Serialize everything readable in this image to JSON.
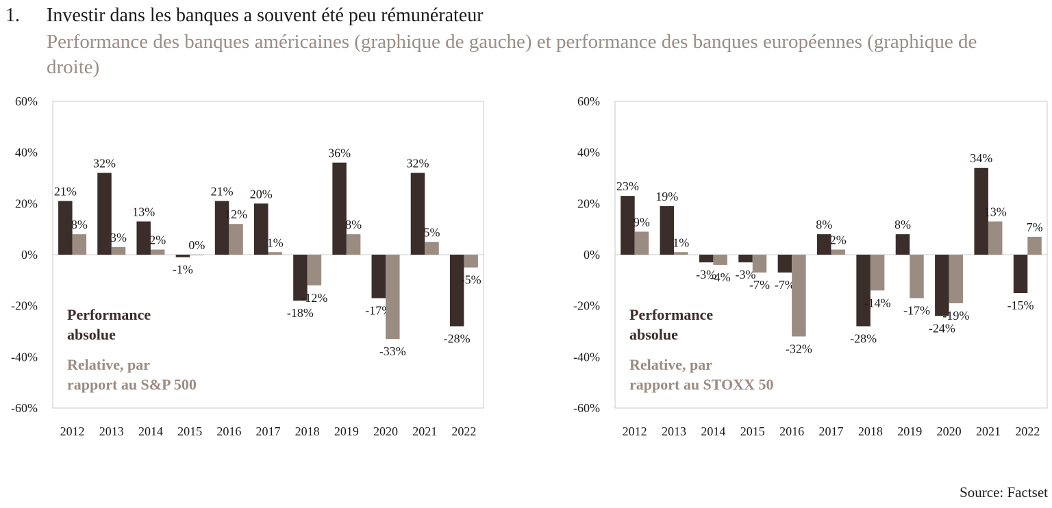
{
  "header": {
    "number": "1.",
    "title": "Investir dans les banques a souvent été peu rémunérateur",
    "subtitle": "Performance des banques américaines (graphique de gauche) et performance des banques européennes (graphique de droite)"
  },
  "footer": {
    "source": "Source: Factset"
  },
  "colors": {
    "absolute": "#3b2d29",
    "relative": "#9b8c82",
    "axis": "#c8c8c8",
    "text": "#1a1a1a"
  },
  "chart_data": [
    {
      "type": "bar",
      "title": "",
      "categories": [
        "2012",
        "2013",
        "2014",
        "2015",
        "2016",
        "2017",
        "2018",
        "2019",
        "2020",
        "2021",
        "2022"
      ],
      "y_ticks": [
        "60%",
        "40%",
        "20%",
        "0%",
        "-20%",
        "-40%",
        "-60%"
      ],
      "ylim": [
        -60,
        60
      ],
      "series": [
        {
          "name": "Performance absolue",
          "values": [
            21,
            32,
            13,
            -1,
            21,
            20,
            -18,
            36,
            -17,
            32,
            -28
          ],
          "labels": [
            "21%",
            "32%",
            "13%",
            "-1%",
            "21%",
            "20%",
            "-18%",
            "36%",
            "-17%",
            "32%",
            "-28%"
          ]
        },
        {
          "name": "Relative, par rapport au S&P 500",
          "values": [
            8,
            3,
            2,
            0,
            12,
            1,
            -12,
            8,
            -33,
            5,
            -5
          ],
          "labels": [
            "8%",
            "3%",
            "2%",
            "0%",
            "12%",
            "1%",
            "-12%",
            "8%",
            "-33%",
            "5%",
            "-5%"
          ]
        }
      ],
      "legend": {
        "placement": "bottom-left",
        "absolute_lines": [
          "Performance",
          "absolue"
        ],
        "relative_lines": [
          "Relative, par",
          "rapport au S&P 500"
        ]
      }
    },
    {
      "type": "bar",
      "title": "",
      "categories": [
        "2012",
        "2013",
        "2014",
        "2015",
        "2016",
        "2017",
        "2018",
        "2019",
        "2020",
        "2021",
        "2022"
      ],
      "y_ticks": [
        "60%",
        "40%",
        "20%",
        "0%",
        "-20%",
        "-40%",
        "-60%"
      ],
      "ylim": [
        -60,
        60
      ],
      "series": [
        {
          "name": "Performance absolue",
          "values": [
            23,
            19,
            -3,
            -3,
            -7,
            8,
            -28,
            8,
            -24,
            34,
            -15
          ],
          "labels": [
            "23%",
            "19%",
            "-3%",
            "-3%",
            "-7%",
            "8%",
            "-28%",
            "8%",
            "-24%",
            "34%",
            "-15%"
          ]
        },
        {
          "name": "Relative, par rapport au STOXX 50",
          "values": [
            9,
            1,
            -4,
            -7,
            -32,
            2,
            -14,
            -17,
            -19,
            13,
            7
          ],
          "labels": [
            "9%",
            "1%",
            "-4%",
            "-7%",
            "-32%",
            "2%",
            "-14%",
            "-17%",
            "-19%",
            "13%",
            "7%"
          ]
        }
      ],
      "legend": {
        "placement": "bottom-left",
        "absolute_lines": [
          "Performance",
          "absolue"
        ],
        "relative_lines": [
          "Relative, par",
          "rapport au STOXX 50"
        ]
      }
    }
  ]
}
